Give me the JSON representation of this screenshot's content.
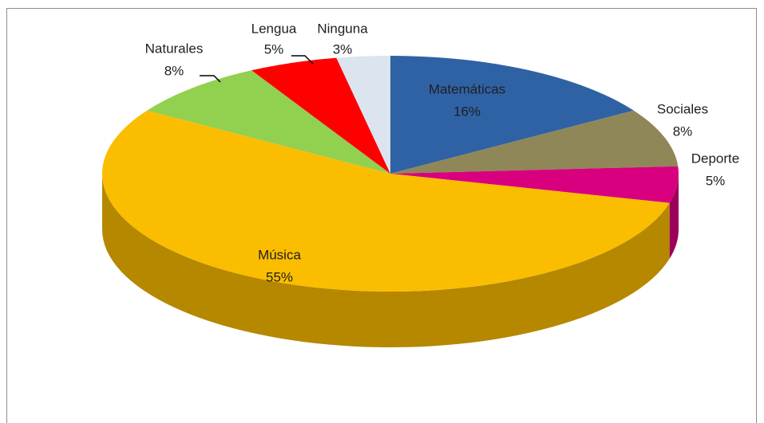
{
  "chart_data": {
    "type": "pie",
    "categories": [
      "Matemáticas",
      "Sociales",
      "Deporte",
      "Música",
      "Naturales",
      "Lengua",
      "Ninguna"
    ],
    "values": [
      16,
      8,
      5,
      55,
      8,
      5,
      3
    ],
    "value_labels": [
      "16%",
      "8%",
      "5%",
      "55%",
      "8%",
      "5%",
      "3%"
    ],
    "colors": [
      "#2f62a5",
      "#8f8757",
      "#d9007f",
      "#fbbd00",
      "#92d050",
      "#ff0000",
      "#dce4ef"
    ]
  }
}
